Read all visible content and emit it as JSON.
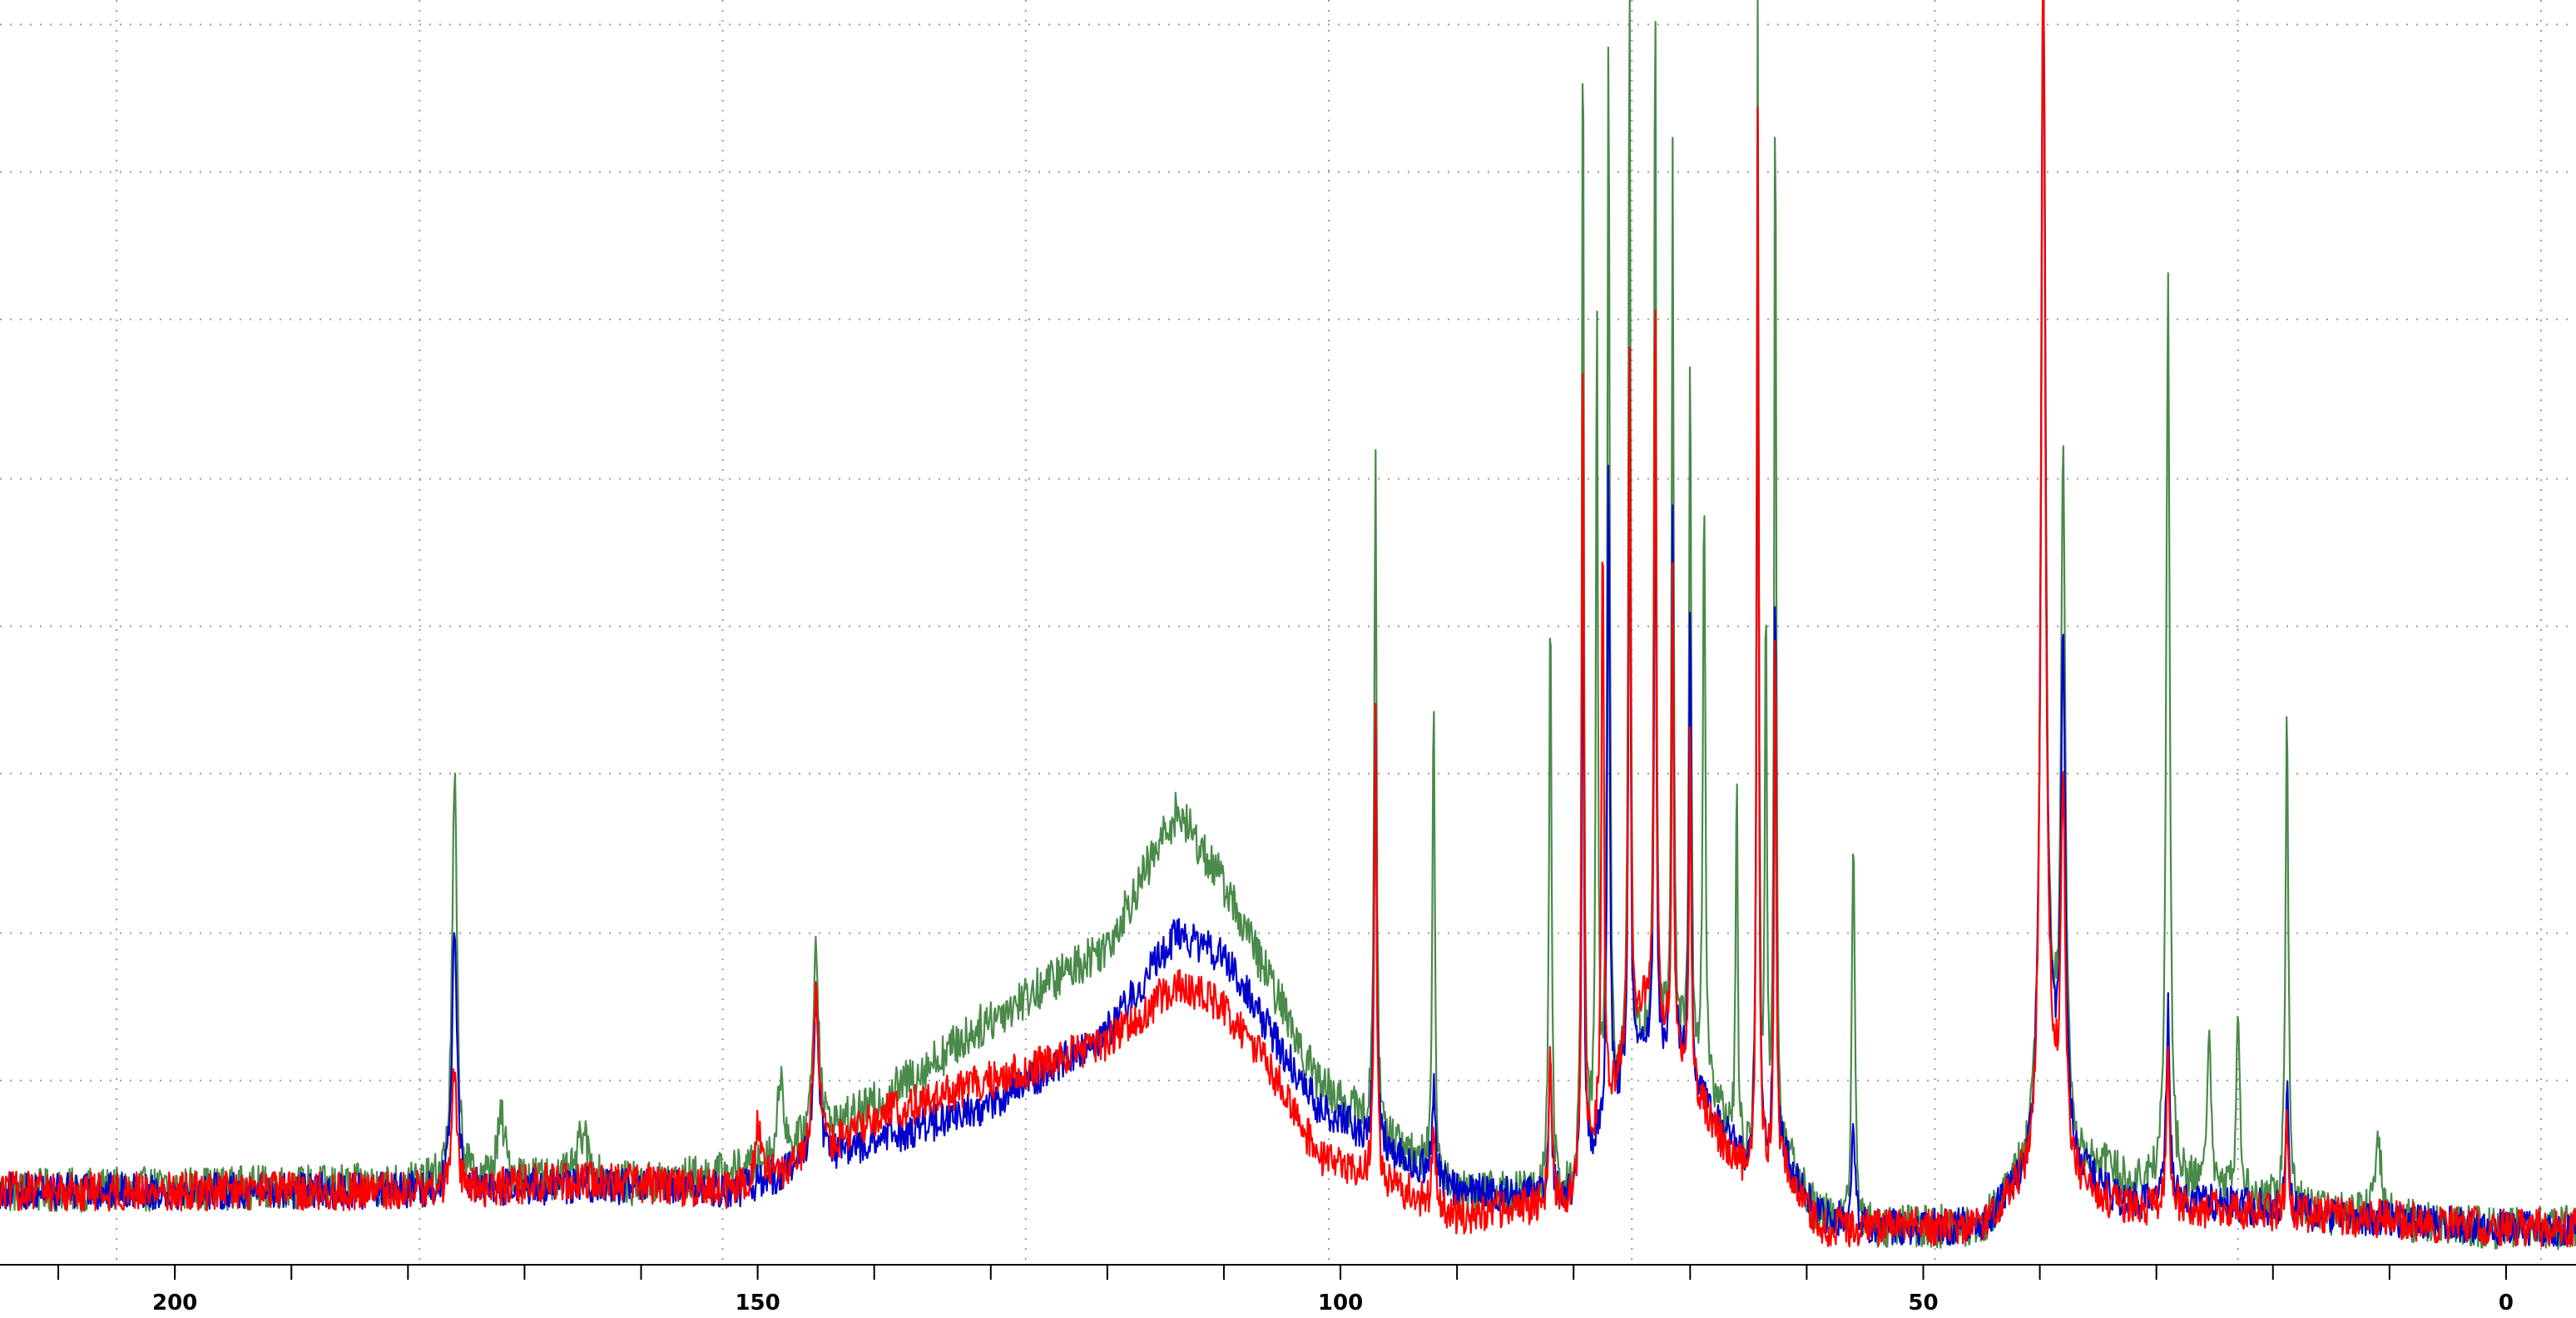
{
  "chart_data": {
    "type": "line",
    "title": "",
    "xlabel": "",
    "ylabel": "",
    "x_reversed": true,
    "xlim": [
      215,
      -6
    ],
    "ylim": [
      -3,
      100
    ],
    "grid": {
      "x": true,
      "y": true,
      "style": "dotted"
    },
    "x_ticks_major": [
      200,
      150,
      100,
      50,
      0
    ],
    "x_tick_labels": [
      "200",
      "150",
      "100",
      "50",
      "0"
    ],
    "x_ticks_minor_step": 10,
    "x_grid_step": 26,
    "y_grid": [
      12,
      24,
      37,
      49,
      61,
      74,
      86,
      98
    ],
    "y_tick_labels_visible": false,
    "legend": "none",
    "series": [
      {
        "color": "#4a8a4a",
        "noise": 1.8,
        "baseline": [
          [
            215,
            3
          ],
          [
            176,
            3.5
          ],
          [
            170,
            4
          ],
          [
            160,
            3.5
          ],
          [
            152,
            4.5
          ],
          [
            147,
            6
          ],
          [
            140,
            10
          ],
          [
            130,
            17
          ],
          [
            120,
            23
          ],
          [
            114,
            34
          ],
          [
            110,
            28
          ],
          [
            106,
            20
          ],
          [
            102,
            12
          ],
          [
            97,
            8
          ],
          [
            90,
            3
          ],
          [
            80,
            2.5
          ],
          [
            77,
            9
          ],
          [
            74,
            15
          ],
          [
            71,
            15
          ],
          [
            68,
            10
          ],
          [
            65,
            5
          ],
          [
            62,
            6
          ],
          [
            59,
            1
          ],
          [
            55,
            0
          ],
          [
            45,
            0
          ],
          [
            41,
            5
          ],
          [
            39,
            13
          ],
          [
            37,
            6
          ],
          [
            33,
            4
          ],
          [
            25,
            3
          ],
          [
            15,
            1
          ],
          [
            0,
            0
          ],
          [
            -6,
            0
          ]
        ],
        "peaks": [
          [
            176,
            33,
            0.25
          ],
          [
            172,
            5,
            0.4
          ],
          [
            165,
            4,
            0.5
          ],
          [
            148,
            7,
            0.3
          ],
          [
            145,
            16,
            0.3
          ],
          [
            97,
            55,
            0.12
          ],
          [
            92,
            40,
            0.12
          ],
          [
            82,
            50,
            0.12
          ],
          [
            79.2,
            98,
            0.1
          ],
          [
            78,
            70,
            0.1
          ],
          [
            77,
            87,
            0.12
          ],
          [
            75.2,
            95,
            0.1
          ],
          [
            73,
            90,
            0.1
          ],
          [
            71.5,
            72,
            0.1
          ],
          [
            70,
            60,
            0.1
          ],
          [
            68.8,
            50,
            0.12
          ],
          [
            66,
            30,
            0.1
          ],
          [
            64.2,
            98,
            0.1
          ],
          [
            63.5,
            45,
            0.1
          ],
          [
            62.7,
            90,
            0.1
          ],
          [
            56,
            31,
            0.15
          ],
          [
            39.7,
            98,
            0.22
          ],
          [
            38,
            55,
            0.2
          ],
          [
            29,
            73,
            0.18
          ],
          [
            25.5,
            13,
            0.2
          ],
          [
            23,
            13,
            0.2
          ],
          [
            18.8,
            40,
            0.15
          ],
          [
            11,
            7,
            0.3
          ]
        ]
      },
      {
        "color": "#0000cc",
        "noise": 1.5,
        "baseline": [
          [
            215,
            3
          ],
          [
            176,
            3
          ],
          [
            165,
            3.5
          ],
          [
            152,
            3
          ],
          [
            146,
            5
          ],
          [
            140,
            7
          ],
          [
            130,
            10
          ],
          [
            120,
            16
          ],
          [
            114,
            24
          ],
          [
            110,
            22
          ],
          [
            106,
            16
          ],
          [
            102,
            10
          ],
          [
            97,
            7
          ],
          [
            90,
            3
          ],
          [
            80,
            2.5
          ],
          [
            77,
            9
          ],
          [
            74,
            14
          ],
          [
            71,
            14
          ],
          [
            68,
            9
          ],
          [
            65,
            5
          ],
          [
            62,
            6
          ],
          [
            59,
            1
          ],
          [
            55,
            0
          ],
          [
            45,
            0
          ],
          [
            41,
            4
          ],
          [
            39,
            12
          ],
          [
            37,
            5
          ],
          [
            33,
            2
          ],
          [
            25,
            2
          ],
          [
            15,
            1
          ],
          [
            0,
            0
          ],
          [
            -6,
            0
          ]
        ],
        "peaks": [
          [
            176,
            22,
            0.25
          ],
          [
            145,
            13,
            0.3
          ],
          [
            97,
            35,
            0.12
          ],
          [
            92,
            8,
            0.15
          ],
          [
            82,
            10,
            0.15
          ],
          [
            79.2,
            55,
            0.1
          ],
          [
            77,
            55,
            0.12
          ],
          [
            75.2,
            60,
            0.1
          ],
          [
            73,
            58,
            0.1
          ],
          [
            71.5,
            45,
            0.1
          ],
          [
            70,
            40,
            0.1
          ],
          [
            64.2,
            85,
            0.1
          ],
          [
            62.7,
            48,
            0.1
          ],
          [
            56,
            8,
            0.15
          ],
          [
            39.7,
            96,
            0.22
          ],
          [
            38,
            40,
            0.2
          ],
          [
            29,
            16,
            0.18
          ],
          [
            18.8,
            10,
            0.15
          ]
        ]
      },
      {
        "color": "#ff0000",
        "noise": 1.6,
        "baseline": [
          [
            215,
            3
          ],
          [
            176,
            3
          ],
          [
            165,
            4
          ],
          [
            152,
            3
          ],
          [
            146,
            5
          ],
          [
            140,
            9
          ],
          [
            130,
            12
          ],
          [
            120,
            15
          ],
          [
            114,
            20
          ],
          [
            110,
            18
          ],
          [
            106,
            13
          ],
          [
            102,
            6
          ],
          [
            97,
            4
          ],
          [
            90,
            1
          ],
          [
            80,
            2
          ],
          [
            77,
            10
          ],
          [
            74,
            18
          ],
          [
            71,
            14
          ],
          [
            68,
            8
          ],
          [
            65,
            4
          ],
          [
            62,
            5
          ],
          [
            59,
            0
          ],
          [
            55,
            0
          ],
          [
            45,
            0
          ],
          [
            41,
            4
          ],
          [
            39,
            10
          ],
          [
            37,
            4
          ],
          [
            33,
            1.5
          ],
          [
            25,
            1.5
          ],
          [
            15,
            1
          ],
          [
            0,
            0
          ],
          [
            -6,
            0
          ]
        ],
        "peaks": [
          [
            176,
            10,
            0.25
          ],
          [
            150,
            5,
            0.3
          ],
          [
            145,
            13,
            0.3
          ],
          [
            97,
            38,
            0.12
          ],
          [
            92,
            7,
            0.15
          ],
          [
            82,
            12,
            0.15
          ],
          [
            79.2,
            72,
            0.1
          ],
          [
            77.5,
            50,
            0.12
          ],
          [
            75.2,
            60,
            0.1
          ],
          [
            73,
            62,
            0.1
          ],
          [
            71.5,
            38,
            0.1
          ],
          [
            70,
            30,
            0.1
          ],
          [
            64.2,
            88,
            0.1
          ],
          [
            62.7,
            45,
            0.1
          ],
          [
            39.7,
            95,
            0.22
          ],
          [
            38,
            30,
            0.2
          ],
          [
            29,
            12,
            0.18
          ],
          [
            18.8,
            7,
            0.15
          ]
        ]
      }
    ]
  }
}
